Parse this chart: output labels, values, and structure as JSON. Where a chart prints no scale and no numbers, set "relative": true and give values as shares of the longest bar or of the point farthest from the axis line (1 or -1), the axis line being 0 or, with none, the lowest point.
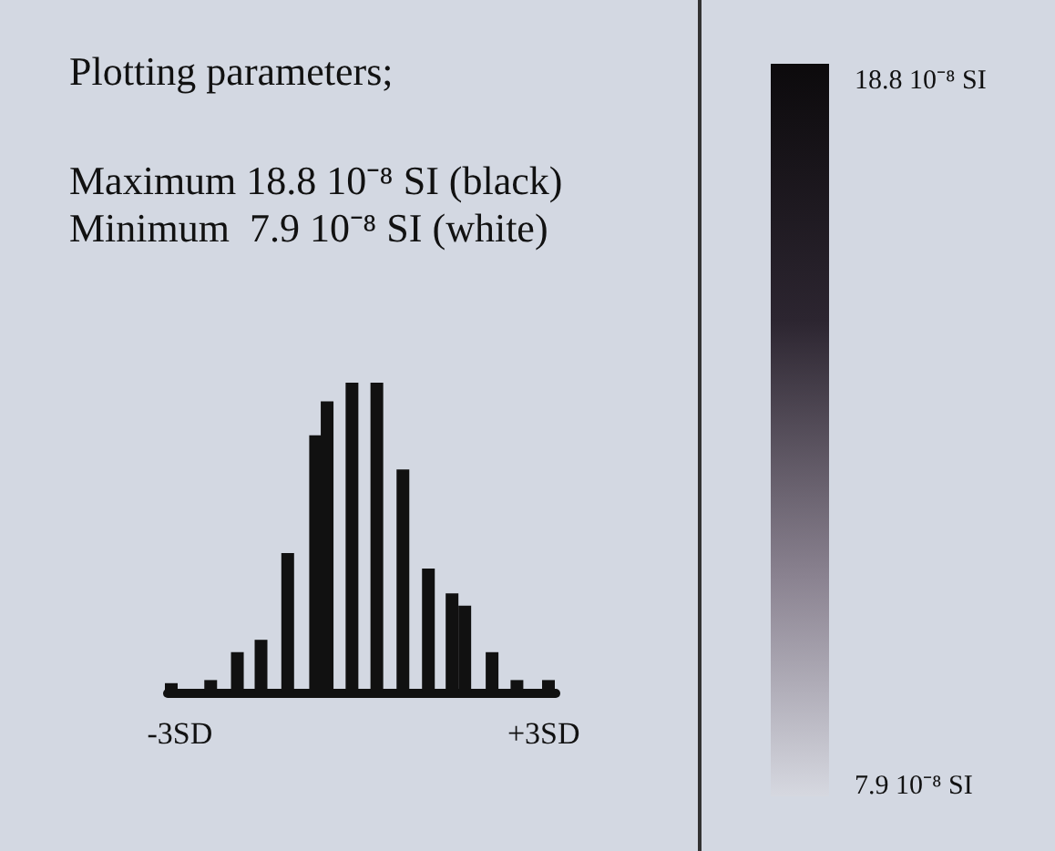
{
  "chart_data": [
    {
      "type": "bar",
      "title": "Plotting parameters;",
      "annotations": [
        "Maximum 18.8 10⁻⁸ SI (black)",
        "Minimum  7.9 10⁻⁸ SI (white)"
      ],
      "relative": true,
      "color": "#111111",
      "x": [
        -3.14,
        -2.49,
        -2.05,
        -1.66,
        -1.22,
        -0.76,
        -0.57,
        -0.16,
        0.25,
        0.68,
        1.1,
        1.49,
        1.7,
        2.15,
        2.56,
        3.08
      ],
      "values": [
        0.03,
        0.04,
        0.13,
        0.17,
        0.45,
        0.83,
        0.94,
        1,
        1,
        0.72,
        0.4,
        0.32,
        0.28,
        0.13,
        0.04,
        0.04
      ],
      "xlim": [
        -3.2,
        3.2
      ],
      "xticks": [
        {
          "value": -3,
          "label": "-3SD"
        },
        {
          "value": 3,
          "label": "+3SD"
        }
      ]
    },
    {
      "type": "other",
      "annotations": [
        "18.8 10⁻⁸ SI",
        "7.9 10⁻⁸ SI"
      ]
    }
  ]
}
